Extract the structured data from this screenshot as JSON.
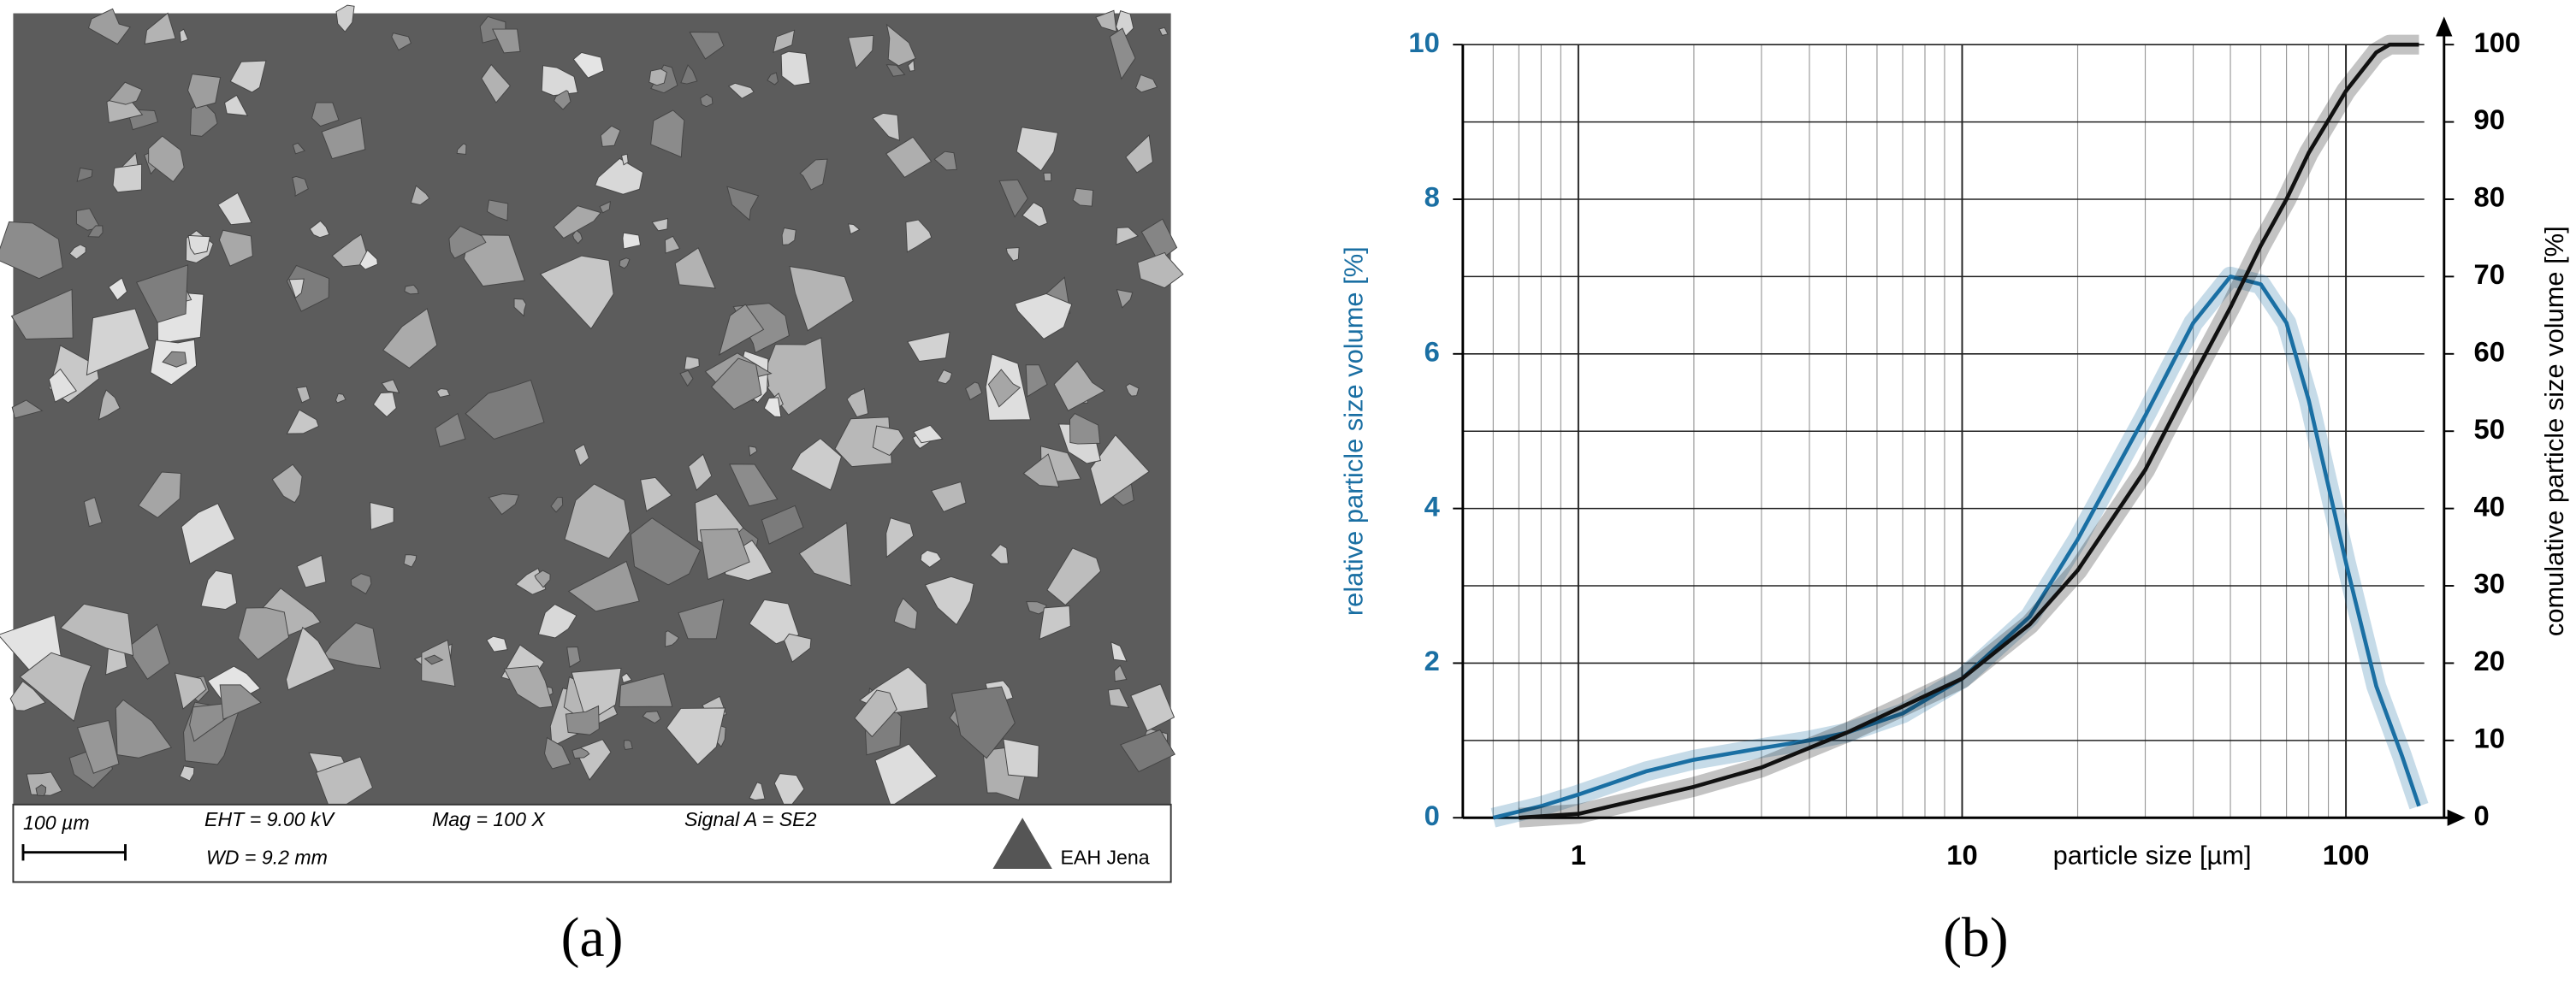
{
  "image_panel": {
    "scale_bar": "100 µm",
    "eht": "EHT = 9.00 kV",
    "mag": "Mag = 100 X",
    "signal": "Signal A = SE2",
    "wd": "WD = 9.2 mm",
    "logo": "EAH Jena"
  },
  "captions": [
    "(a)",
    "(b)"
  ],
  "chart_data": {
    "type": "line",
    "x_label": "particle size [µm]",
    "y_label": "relative particle size volume [%]",
    "y2_label": "comulative particle size volume [%]",
    "log_x": true,
    "grid": true,
    "xlim": [
      0.5,
      160
    ],
    "xticks": [
      1,
      10,
      100
    ],
    "ylim": [
      0,
      10
    ],
    "yticks": [
      0,
      2,
      4,
      6,
      8,
      10
    ],
    "y2lim": [
      0,
      100
    ],
    "y2ticks": [
      0,
      10,
      20,
      30,
      40,
      50,
      60,
      70,
      80,
      90,
      100
    ],
    "series": [
      {
        "name": "relative",
        "color": "#1a6fa3",
        "x": [
          0.6,
          0.8,
          1,
          1.5,
          2,
          3,
          4,
          5,
          7,
          10,
          15,
          20,
          30,
          40,
          50,
          60,
          70,
          80,
          100,
          120,
          140,
          155
        ],
        "values": [
          0,
          0.15,
          0.3,
          0.6,
          0.75,
          0.9,
          1.0,
          1.1,
          1.35,
          1.8,
          2.6,
          3.6,
          5.2,
          6.4,
          7.0,
          6.9,
          6.4,
          5.4,
          3.3,
          1.7,
          0.8,
          0.15
        ]
      },
      {
        "name": "cumulative",
        "color": "#111111",
        "axis": "y2",
        "x": [
          0.7,
          1,
          2,
          3,
          5,
          10,
          15,
          20,
          30,
          40,
          50,
          60,
          70,
          80,
          100,
          120,
          130,
          155
        ],
        "values": [
          0,
          0.5,
          4,
          6.5,
          11,
          18,
          25,
          32,
          45,
          57,
          66,
          74,
          80,
          86,
          94,
          99,
          100,
          100
        ]
      }
    ]
  }
}
